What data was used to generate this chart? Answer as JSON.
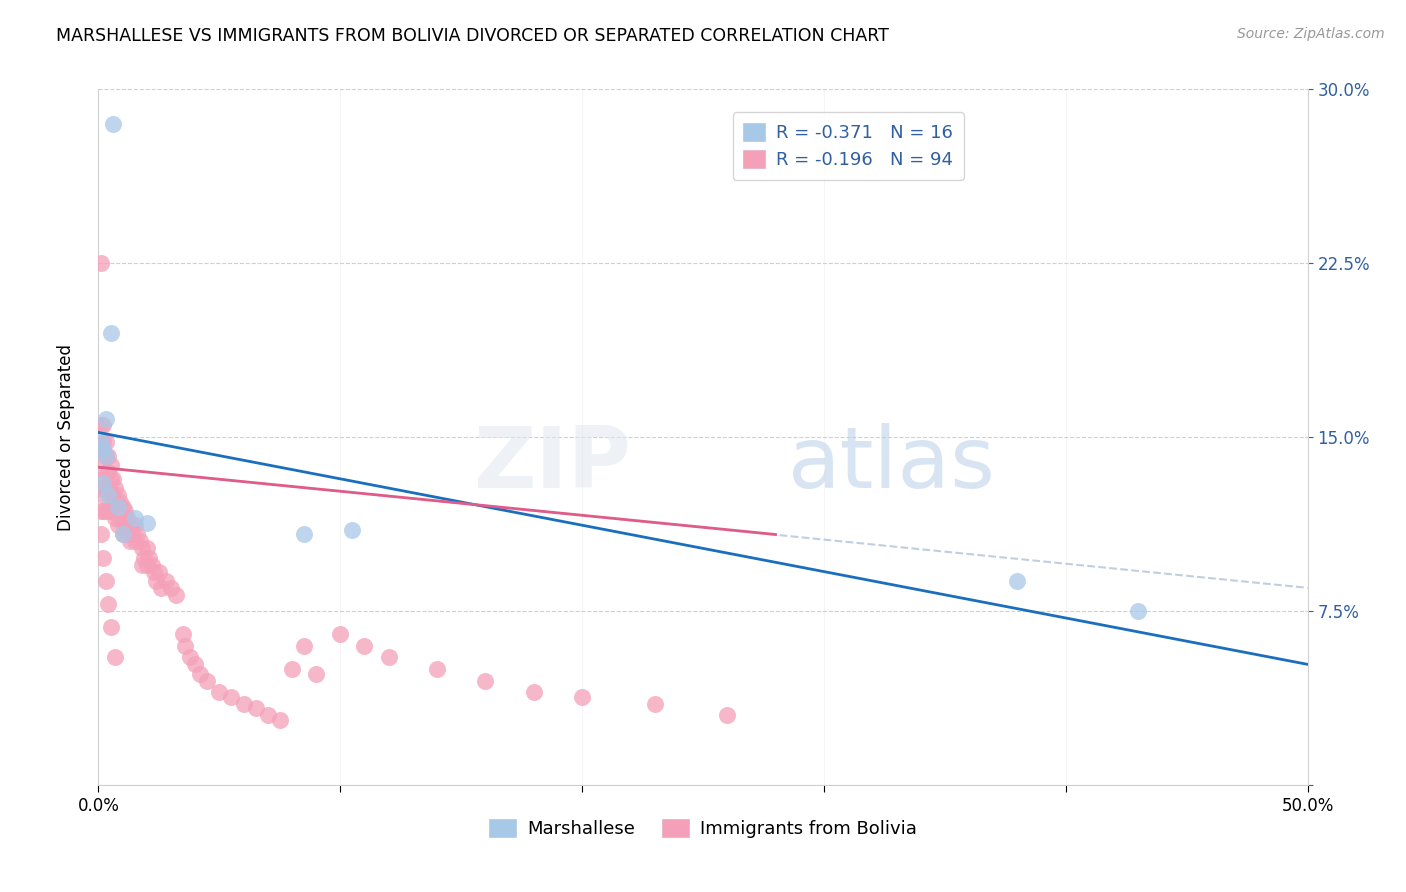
{
  "title": "MARSHALLESE VS IMMIGRANTS FROM BOLIVIA DIVORCED OR SEPARATED CORRELATION CHART",
  "source": "Source: ZipAtlas.com",
  "ylabel": "Divorced or Separated",
  "xlim": [
    0.0,
    0.5
  ],
  "ylim": [
    0.0,
    0.3
  ],
  "xticks": [
    0.0,
    0.1,
    0.2,
    0.3,
    0.4,
    0.5
  ],
  "yticks": [
    0.0,
    0.075,
    0.15,
    0.225,
    0.3
  ],
  "blue_color": "#a8c8e8",
  "pink_color": "#f4a0b8",
  "trendline_blue": "#1a6fbd",
  "trendline_pink": "#e05a8a",
  "trendline_dashed_color": "#c0cfe0",
  "legend_text_color": "#3060a0",
  "marshallese_x": [
    0.001,
    0.002,
    0.002,
    0.003,
    0.003,
    0.004,
    0.005,
    0.006,
    0.008,
    0.01,
    0.015,
    0.02,
    0.085,
    0.105,
    0.38,
    0.43
  ],
  "marshallese_y": [
    0.148,
    0.145,
    0.13,
    0.142,
    0.158,
    0.125,
    0.195,
    0.285,
    0.12,
    0.108,
    0.115,
    0.113,
    0.108,
    0.11,
    0.088,
    0.075
  ],
  "bolivia_x": [
    0.001,
    0.001,
    0.001,
    0.001,
    0.001,
    0.002,
    0.002,
    0.002,
    0.002,
    0.002,
    0.002,
    0.003,
    0.003,
    0.003,
    0.003,
    0.003,
    0.004,
    0.004,
    0.004,
    0.004,
    0.005,
    0.005,
    0.005,
    0.005,
    0.006,
    0.006,
    0.006,
    0.007,
    0.007,
    0.007,
    0.008,
    0.008,
    0.008,
    0.009,
    0.009,
    0.01,
    0.01,
    0.01,
    0.011,
    0.011,
    0.012,
    0.012,
    0.013,
    0.013,
    0.014,
    0.015,
    0.015,
    0.016,
    0.017,
    0.018,
    0.018,
    0.019,
    0.02,
    0.02,
    0.021,
    0.022,
    0.023,
    0.024,
    0.025,
    0.026,
    0.028,
    0.03,
    0.032,
    0.035,
    0.036,
    0.038,
    0.04,
    0.042,
    0.045,
    0.05,
    0.055,
    0.06,
    0.065,
    0.07,
    0.075,
    0.08,
    0.085,
    0.09,
    0.1,
    0.11,
    0.12,
    0.14,
    0.16,
    0.18,
    0.2,
    0.23,
    0.26,
    0.001,
    0.002,
    0.003,
    0.004,
    0.005,
    0.007
  ],
  "bolivia_y": [
    0.225,
    0.155,
    0.145,
    0.128,
    0.118,
    0.155,
    0.148,
    0.14,
    0.132,
    0.125,
    0.118,
    0.148,
    0.142,
    0.135,
    0.128,
    0.118,
    0.142,
    0.135,
    0.128,
    0.118,
    0.138,
    0.132,
    0.125,
    0.118,
    0.132,
    0.125,
    0.118,
    0.128,
    0.122,
    0.115,
    0.125,
    0.118,
    0.112,
    0.122,
    0.115,
    0.12,
    0.113,
    0.108,
    0.118,
    0.112,
    0.115,
    0.108,
    0.112,
    0.105,
    0.108,
    0.112,
    0.105,
    0.108,
    0.105,
    0.102,
    0.095,
    0.098,
    0.102,
    0.095,
    0.098,
    0.095,
    0.092,
    0.088,
    0.092,
    0.085,
    0.088,
    0.085,
    0.082,
    0.065,
    0.06,
    0.055,
    0.052,
    0.048,
    0.045,
    0.04,
    0.038,
    0.035,
    0.033,
    0.03,
    0.028,
    0.05,
    0.06,
    0.048,
    0.065,
    0.06,
    0.055,
    0.05,
    0.045,
    0.04,
    0.038,
    0.035,
    0.03,
    0.108,
    0.098,
    0.088,
    0.078,
    0.068,
    0.055
  ],
  "blue_trendline_x0": 0.0,
  "blue_trendline_y0": 0.152,
  "blue_trendline_x1": 0.5,
  "blue_trendline_y1": 0.052,
  "pink_trendline_x0": 0.0,
  "pink_trendline_y0": 0.137,
  "pink_trendline_x1": 0.28,
  "pink_trendline_y1": 0.108,
  "dashed_trendline_x0": 0.0,
  "dashed_trendline_y0": 0.137,
  "dashed_trendline_x1": 0.5,
  "dashed_trendline_y1": 0.085
}
